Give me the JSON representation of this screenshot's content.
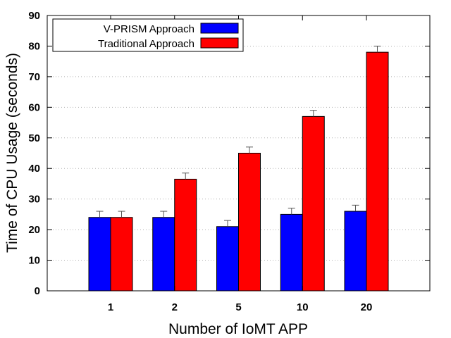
{
  "chart_data": {
    "type": "bar",
    "title": "",
    "xlabel": "Number of IoMT APP",
    "ylabel": "Time of CPU Usage (seconds)",
    "categories": [
      "1",
      "2",
      "5",
      "10",
      "20"
    ],
    "ylim": [
      0,
      90
    ],
    "yticks": [
      "0",
      "10",
      "20",
      "30",
      "40",
      "50",
      "60",
      "70",
      "80",
      "90"
    ],
    "grid": "horizontal dotted",
    "legend_position": "top-left",
    "series": [
      {
        "name": "V-PRISM Approach",
        "color": "#0000ff",
        "values": [
          24,
          24,
          21,
          25,
          26
        ],
        "errors": [
          2,
          2,
          2,
          2,
          2
        ]
      },
      {
        "name": "Traditional Approach",
        "color": "#ff0000",
        "values": [
          24,
          36.5,
          45,
          57,
          78
        ],
        "errors": [
          2,
          2,
          2,
          2,
          2
        ]
      }
    ]
  }
}
